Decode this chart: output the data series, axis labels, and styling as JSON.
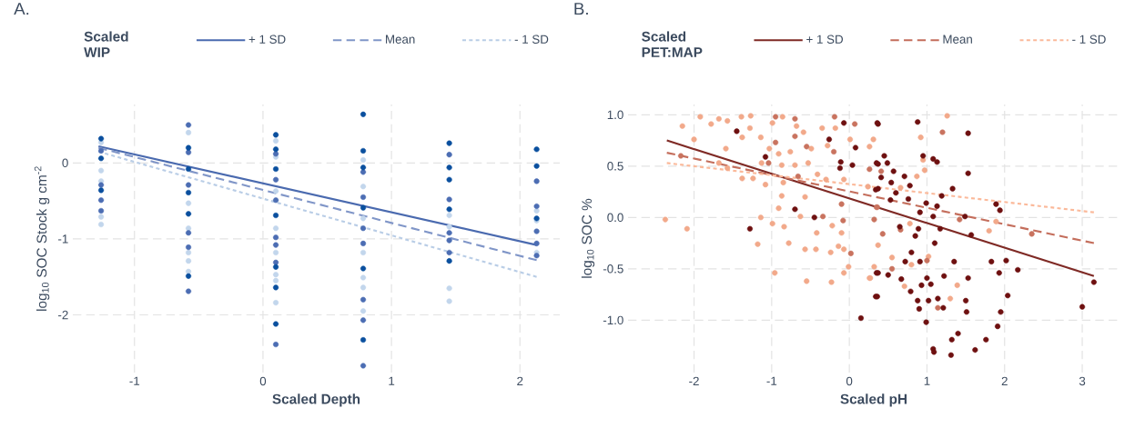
{
  "chart_data": [
    {
      "type": "scatter",
      "title": "A.",
      "xlabel": "Scaled Depth",
      "ylabel": "log$_{10}$ SOC Stock g cm$^{-2}$",
      "legend_title": "Scaled WIP",
      "legend": "top",
      "grid": true,
      "xlim": [
        -1.48,
        2.31
      ],
      "ylim": [
        -2.76,
        0.77
      ],
      "xticks": [
        -1,
        0,
        1,
        2
      ],
      "yticks": [
        -2,
        -1,
        0
      ],
      "series": [
        {
          "type": "scatter",
          "marker": "circle",
          "color": "#c2d6ec",
          "x": [
            -1.26,
            -1.26,
            -1.26,
            -1.26,
            -1.26,
            -0.58,
            -0.58,
            -0.58,
            -0.58,
            -0.58,
            -0.58,
            0.1,
            0.1,
            0.1,
            0.1,
            0.1,
            0.1,
            0.1,
            0.1,
            0.78,
            0.78,
            0.78,
            0.78,
            0.78,
            0.78,
            0.78,
            1.45,
            1.45,
            1.45,
            1.45,
            2.13,
            2.13,
            2.13
          ],
          "values": [
            0.27,
            -0.1,
            -0.24,
            -0.71,
            -0.81,
            0.4,
            -0.53,
            -0.86,
            -1.18,
            -1.29,
            -1.43,
            0.29,
            0.08,
            -0.37,
            -0.86,
            -1.18,
            -1.47,
            -1.55,
            -1.84,
            0.04,
            -0.31,
            -0.73,
            -1.18,
            -1.51,
            -1.64,
            -1.95,
            -0.69,
            -0.84,
            -1.65,
            -1.82,
            -0.63,
            -0.76,
            -1.18
          ]
        },
        {
          "type": "scatter",
          "marker": "circle",
          "color": "#4c6db3",
          "x": [
            -1.26,
            -1.26,
            -1.26,
            -1.26,
            -0.58,
            -0.58,
            -0.58,
            -0.58,
            -0.58,
            -0.58,
            0.1,
            0.1,
            0.1,
            0.1,
            0.1,
            0.1,
            0.1,
            0.78,
            0.78,
            0.78,
            0.78,
            0.78,
            0.78,
            0.78,
            1.45,
            1.45,
            1.45,
            1.45,
            1.45,
            2.13,
            2.13,
            2.13,
            2.13,
            2.13
          ],
          "values": [
            0.16,
            -0.29,
            -0.49,
            -0.63,
            0.5,
            0.14,
            -0.29,
            -0.92,
            -1.11,
            -1.69,
            0.12,
            -0.22,
            -0.49,
            -0.98,
            -1.08,
            -1.31,
            -2.39,
            -0.12,
            -0.45,
            -0.86,
            -1.06,
            -1.8,
            -2.07,
            -2.67,
            0.11,
            -0.48,
            -0.92,
            -1.02,
            -1.18,
            -0.24,
            -0.57,
            -0.9,
            -1.06,
            -1.22
          ]
        },
        {
          "type": "scatter",
          "marker": "circle",
          "color": "#0a4f9e",
          "x": [
            -1.26,
            -1.26,
            -1.26,
            -0.58,
            -0.58,
            -0.58,
            -0.58,
            -0.58,
            0.1,
            0.1,
            0.1,
            0.1,
            0.1,
            0.1,
            0.1,
            0.78,
            0.78,
            0.78,
            0.78,
            0.78,
            0.78,
            1.45,
            1.45,
            1.45,
            1.45,
            1.45,
            2.13,
            2.13,
            2.13
          ],
          "values": [
            0.32,
            0.06,
            -0.36,
            0.2,
            -0.08,
            -0.39,
            -0.67,
            -1.49,
            0.37,
            0.18,
            -0.08,
            -0.69,
            -1.37,
            -1.64,
            -2.12,
            0.64,
            0.16,
            -0.06,
            -0.59,
            -1.39,
            -2.33,
            0.26,
            -0.06,
            -0.22,
            -0.61,
            -1.29,
            0.18,
            -0.04,
            -0.73
          ]
        },
        {
          "type": "line",
          "marker": "none",
          "name": "+ 1 SD",
          "color": "#4a6aaf",
          "line_style": "solid",
          "x": [
            -1.28,
            2.13
          ],
          "values": [
            0.22,
            -1.08
          ]
        },
        {
          "type": "line",
          "marker": "none",
          "name": "Mean",
          "color": "#8096c8",
          "line_style": "dashed",
          "x": [
            -1.28,
            2.13
          ],
          "values": [
            0.2,
            -1.28
          ]
        },
        {
          "type": "line",
          "marker": "none",
          "name": "- 1 SD",
          "color": "#b9cde6",
          "line_style": "dotted",
          "x": [
            -1.28,
            2.13
          ],
          "values": [
            0.15,
            -1.5
          ]
        }
      ]
    },
    {
      "type": "scatter",
      "title": "B.",
      "xlabel": "Scaled pH",
      "ylabel": "log$_{10}$ SOC %",
      "legend_title": "Scaled PET:MAP",
      "legend": "top",
      "grid": true,
      "xlim": [
        -2.85,
        3.48
      ],
      "ylim": [
        -1.51,
        1.1
      ],
      "xticks": [
        -2,
        -1,
        0,
        1,
        2,
        3
      ],
      "yticks": [
        {
          "value": -1,
          "label": "-1.0"
        },
        -0.5,
        {
          "value": 0,
          "label": "0.0"
        },
        0.5,
        {
          "value": 1,
          "label": "1.0"
        }
      ],
      "series": [
        {
          "type": "scatter",
          "marker": "circle",
          "color": "#f2a98a",
          "x": [
            -2.15,
            -1.92,
            -1.78,
            -2.0,
            -2.37,
            -2.09,
            -1.68,
            -1.57,
            -1.39,
            -1.27,
            -1.28,
            -1.38,
            -1.59,
            -1.68,
            -1.57,
            -1.38,
            -1.24,
            -1.14,
            -1.03,
            -1.13,
            -1.08,
            -1.18,
            -1.14,
            -0.99,
            -0.86,
            -0.91,
            -0.87,
            -0.85,
            -0.87,
            -0.91,
            -0.99,
            -0.84,
            -0.78,
            -0.96,
            -0.76,
            -0.7,
            -0.68,
            -0.59,
            -0.57,
            -0.63,
            -0.57,
            -0.55,
            -0.49,
            -0.53,
            -0.41,
            -0.42,
            -0.43,
            -0.35,
            -0.28,
            -0.3,
            -0.22,
            -0.24,
            -0.23,
            -0.18,
            -0.14,
            -0.1,
            -0.07,
            -0.01,
            -0.07,
            0.01,
            -0.07,
            0.26,
            1.26,
            0.92,
            0.31,
            0.26,
            0.95,
            0.97,
            0.87,
            0.24,
            0.66,
            1.89,
            1.8,
            0.37,
            0.55,
            0.32,
            0.27,
            0.71,
            1.39,
            1.3,
            1.02,
            0.78,
            0.8
          ],
          "values": [
            0.89,
            0.98,
            0.91,
            0.76,
            -0.02,
            -0.11,
            0.96,
            0.94,
            0.98,
            0.99,
            0.87,
            0.78,
            0.67,
            0.53,
            0.48,
            0.38,
            0.38,
            0.78,
            0.67,
            0.53,
            0.32,
            -0.26,
            0.0,
            0.92,
            0.98,
            0.62,
            0.51,
            0.34,
            0.21,
            0.09,
            -0.06,
            -0.09,
            -0.25,
            -0.54,
            0.64,
            0.51,
            0.89,
            0.83,
            0.2,
            0.01,
            -0.31,
            -0.62,
            0.67,
            0.53,
            0.42,
            -0.15,
            -0.31,
            0.87,
            0.7,
            0.37,
            -0.08,
            -0.34,
            -0.63,
            0.87,
            -0.28,
            -0.15,
            -0.31,
            -0.48,
            -0.54,
            0.76,
            0.37,
            -0.59,
            0.99,
            0.78,
            0.76,
            0.69,
            0.56,
            0.46,
            0.4,
            0.3,
            0.29,
            -0.04,
            -0.13,
            -0.27,
            -0.39,
            -0.48,
            -0.59,
            -0.67,
            -0.66,
            -0.79,
            -0.38,
            -0.06,
            -0.46
          ]
        },
        {
          "type": "scatter",
          "marker": "circle",
          "color": "#c9735f",
          "x": [
            -0.95,
            -0.7,
            -0.95,
            -0.7,
            -1.04,
            -2.17,
            -0.55,
            -0.66,
            -0.19,
            -0.2,
            -0.34,
            -0.08,
            0.02,
            0.07,
            -0.1,
            0.36,
            1.2,
            0.26,
            0.41,
            0.35,
            0.32,
            0.43,
            0.66,
            1.42,
            0.55,
            1.0,
            1.14,
            2.35
          ],
          "values": [
            0.98,
            0.96,
            0.73,
            0.79,
            0.53,
            0.6,
            0.69,
            0.4,
            0.98,
            0.64,
            0.01,
            -0.03,
            -0.35,
            0.91,
            0.13,
            0.1,
            0.83,
            0.47,
            0.45,
            0.1,
            -0.02,
            -0.16,
            -0.12,
            -0.02,
            -0.5,
            -0.42,
            -0.88,
            -0.16
          ]
        },
        {
          "type": "scatter",
          "marker": "circle",
          "color": "#6e1010",
          "x": [
            -1.45,
            -1.28,
            -1.08,
            -0.7,
            -0.45,
            -0.26,
            -0.07,
            0.08,
            -0.11,
            -0.12,
            0.04,
            0.15,
            0.36,
            0.35,
            0.34,
            0.35,
            0.34,
            0.37,
            0.88,
            1.53,
            0.45,
            0.37,
            0.49,
            0.57,
            0.41,
            0.71,
            0.95,
            1.08,
            1.13,
            1.53,
            0.54,
            0.78,
            0.37,
            1.33,
            0.6,
            1.19,
            0.53,
            0.76,
            0.99,
            1.13,
            0.91,
            1.08,
            1.49,
            1.89,
            1.94,
            0.65,
            1.17,
            0.89,
            1.57,
            0.85,
            1.1,
            0.8,
            0.72,
            0.91,
            1.35,
            1.83,
            2.02,
            2.17,
            1.93,
            0.37,
            0.5,
            0.67,
            1.0,
            1.53,
            1.22,
            0.93,
            1.05,
            0.79,
            0.36,
            0.88,
            1.02,
            1.14,
            1.5,
            2.04,
            0.9,
            1.21,
            1.51,
            1.95,
            0.99,
            1.91,
            1.4,
            1.32,
            1.76,
            1.08,
            1.09,
            1.62,
            1.31,
            3.15,
            3.0
          ],
          "values": [
            0.84,
            -0.11,
            0.59,
            0.08,
            0.0,
            0.76,
            0.92,
            0.68,
            0.54,
            0.48,
            0.51,
            -0.98,
            0.92,
            0.53,
            0.27,
            -0.54,
            -0.77,
            0.91,
            0.93,
            0.82,
            0.6,
            0.52,
            0.53,
            0.45,
            0.39,
            0.4,
            0.6,
            0.57,
            0.54,
            0.43,
            0.34,
            0.31,
            0.28,
            0.28,
            0.24,
            0.21,
            0.17,
            0.18,
            0.14,
            0.11,
            0.05,
            0.01,
            0.01,
            0.13,
            0.07,
            -0.09,
            -0.11,
            -0.11,
            -0.17,
            -0.18,
            -0.25,
            -0.34,
            -0.43,
            -0.43,
            -0.43,
            -0.43,
            -0.42,
            -0.51,
            -0.54,
            -0.54,
            -0.56,
            -0.6,
            -0.59,
            -0.59,
            -0.57,
            -0.66,
            -0.65,
            -0.72,
            -0.77,
            -0.81,
            -0.81,
            -0.79,
            -0.81,
            -0.76,
            -0.89,
            -0.88,
            -0.92,
            -0.92,
            -1.02,
            -1.06,
            -1.13,
            -1.19,
            -1.19,
            -1.28,
            -1.31,
            -1.29,
            -1.34,
            -0.63,
            -0.87
          ]
        },
        {
          "type": "line",
          "marker": "none",
          "name": "+ 1 SD",
          "color": "#7f2a25",
          "line_style": "solid",
          "x": [
            -2.35,
            3.15
          ],
          "values": [
            0.75,
            -0.57
          ]
        },
        {
          "type": "line",
          "marker": "none",
          "name": "Mean",
          "color": "#c46e5c",
          "line_style": "dashed",
          "x": [
            -2.35,
            3.15
          ],
          "values": [
            0.63,
            -0.25
          ]
        },
        {
          "type": "line",
          "marker": "none",
          "name": "- 1 SD",
          "color": "#fbb99a",
          "line_style": "dotted",
          "x": [
            -2.35,
            3.15
          ],
          "values": [
            0.53,
            0.05
          ]
        }
      ]
    }
  ]
}
